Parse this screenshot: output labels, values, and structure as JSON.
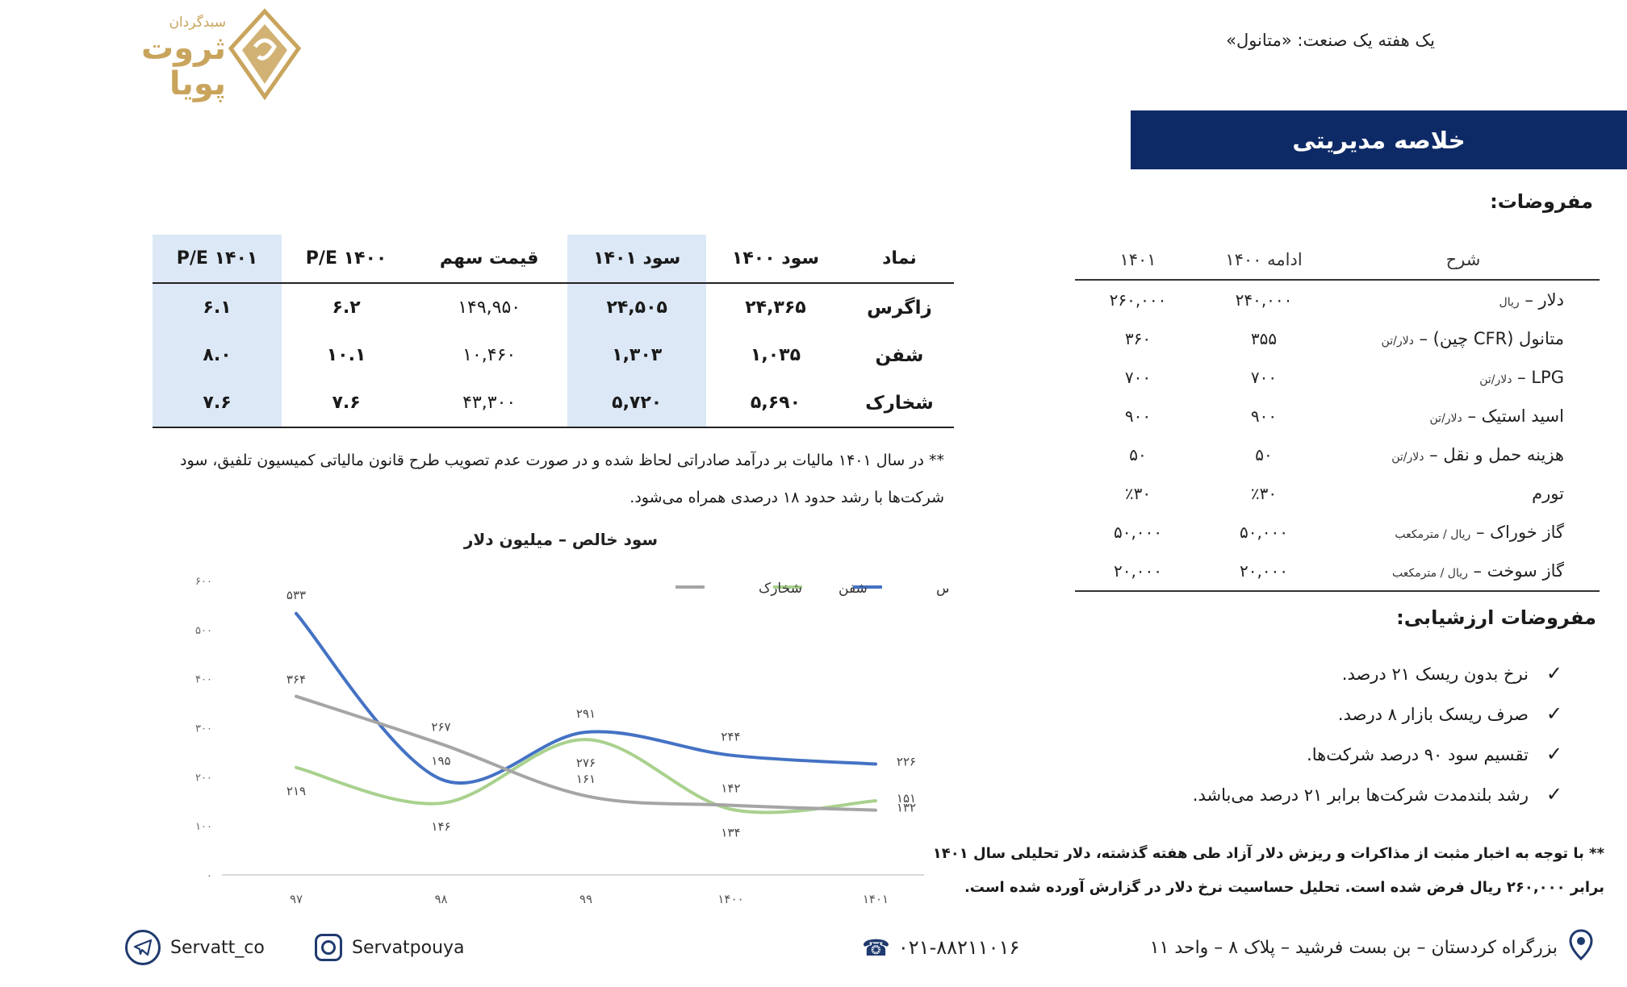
{
  "logo": {
    "small_text": "سبدگردان",
    "line1": "ثروت",
    "line2": "پویا",
    "accent": "#c9a45c"
  },
  "doc_title": "یک هفته یک صنعت: «متانول»",
  "summary_banner": "خلاصه مدیریتی",
  "assumptions": {
    "heading": "مفروضات:",
    "columns": [
      "شرح",
      "ادامه ۱۴۰۰",
      "۱۴۰۱"
    ],
    "rows": [
      {
        "label": "دلار",
        "unit": "ریال",
        "v1400": "۲۴۰,۰۰۰",
        "v1401": "۲۶۰,۰۰۰"
      },
      {
        "label": "متانول (CFR چین)",
        "unit": "دلار/تن",
        "v1400": "۳۵۵",
        "v1401": "۳۶۰"
      },
      {
        "label": "LPG",
        "unit": "دلار/تن",
        "v1400": "۷۰۰",
        "v1401": "۷۰۰"
      },
      {
        "label": "اسید استیک",
        "unit": "دلار/تن",
        "v1400": "۹۰۰",
        "v1401": "۹۰۰"
      },
      {
        "label": "هزینه حمل و نقل",
        "unit": "دلار/تن",
        "v1400": "۵۰",
        "v1401": "۵۰"
      },
      {
        "label": "تورم",
        "unit": "",
        "v1400": "٪۳۰",
        "v1401": "٪۳۰"
      },
      {
        "label": "گاز خوراک",
        "unit": "ریال / مترمکعب",
        "v1400": "۵۰,۰۰۰",
        "v1401": "۵۰,۰۰۰"
      },
      {
        "label": "گاز سوخت",
        "unit": "ریال / مترمکعب",
        "v1400": "۲۰,۰۰۰",
        "v1401": "۲۰,۰۰۰"
      }
    ]
  },
  "valuation": {
    "heading": "مفروضات ارزشیابی:",
    "bullets": [
      "نرخ بدون ریسک ۲۱ درصد.",
      "صرف ریسک بازار ۸ درصد.",
      "تقسیم سود ۹۰ درصد شرکت‌ها.",
      "رشد بلندمدت شرکت‌ها برابر ۲۱ درصد می‌باشد."
    ],
    "note": "** با توجه به اخبار مثبت از مذاکرات و ریزش دلار آزاد طی هفته گذشته، دلار تحلیلی سال ۱۴۰۱ برابر ۲۶۰,۰۰۰ ریال فرض شده است. تحلیل حساسیت نرخ دلار در گزارش آورده شده است."
  },
  "stock_table": {
    "columns": [
      "نماد",
      "سود ۱۴۰۰",
      "سود ۱۴۰۱",
      "قیمت سهم",
      "P/E ۱۴۰۰",
      "P/E ۱۴۰۱"
    ],
    "rows": [
      {
        "symbol": "زاگرس",
        "p1400": "۲۴,۳۶۵",
        "p1401": "۲۴,۵۰۵",
        "price": "۱۴۹,۹۵۰",
        "pe1400": "۶.۲",
        "pe1401": "۶.۱"
      },
      {
        "symbol": "شفن",
        "p1400": "۱,۰۳۵",
        "p1401": "۱,۳۰۳",
        "price": "۱۰,۴۶۰",
        "pe1400": "۱۰.۱",
        "pe1401": "۸.۰"
      },
      {
        "symbol": "شخارک",
        "p1400": "۵,۶۹۰",
        "p1401": "۵,۷۲۰",
        "price": "۴۳,۳۰۰",
        "pe1400": "۷.۶",
        "pe1401": "۷.۶"
      }
    ],
    "note": "** در سال ۱۴۰۱ مالیات بر درآمد صادراتی لحاظ شده و در صورت عدم تصویب طرح قانون مالیاتی کمیسیون تلفیق، سود شرکت‌ها با رشد حدود ۱۸ درصدی همراه می‌شود."
  },
  "chart_data": {
    "type": "line",
    "title": "سود خالص – میلیون دلار",
    "categories": [
      "۹۷",
      "۹۸",
      "۹۹",
      "۱۴۰۰",
      "۱۴۰۱"
    ],
    "ylim": [
      0,
      600
    ],
    "yticks": [
      "۰",
      "۱۰۰",
      "۲۰۰",
      "۳۰۰",
      "۴۰۰",
      "۵۰۰",
      "۶۰۰"
    ],
    "legend_position": "top-right",
    "series": [
      {
        "name": "زاگرس",
        "color": "#4472c4",
        "values": [
          533,
          195,
          291,
          244,
          226
        ],
        "labels": [
          "۵۳۳",
          "۱۹۵",
          "۲۹۱",
          "۲۴۴",
          "۲۲۶"
        ]
      },
      {
        "name": "شفن",
        "color": "#a9d18e",
        "values": [
          219,
          146,
          276,
          134,
          151
        ],
        "labels": [
          "۲۱۹",
          "۱۴۶",
          "۲۷۶",
          "۱۳۴",
          "۱۵۱"
        ]
      },
      {
        "name": "شخارک",
        "color": "#a5a5a5",
        "values": [
          364,
          267,
          161,
          142,
          132
        ],
        "labels": [
          "۳۶۴",
          "۲۶۷",
          "۱۶۱",
          "۱۴۲",
          "۱۳۲"
        ]
      }
    ]
  },
  "footer": {
    "telegram": "Servatt_co",
    "instagram": "Servatpouya",
    "phone": "۰۲۱-۸۸۲۱۱۰۱۶",
    "address": "بزرگراه کردستان – بن بست فرشید – پلاک ۸ – واحد ۱۱",
    "icon_color": "#1f3a6e"
  }
}
